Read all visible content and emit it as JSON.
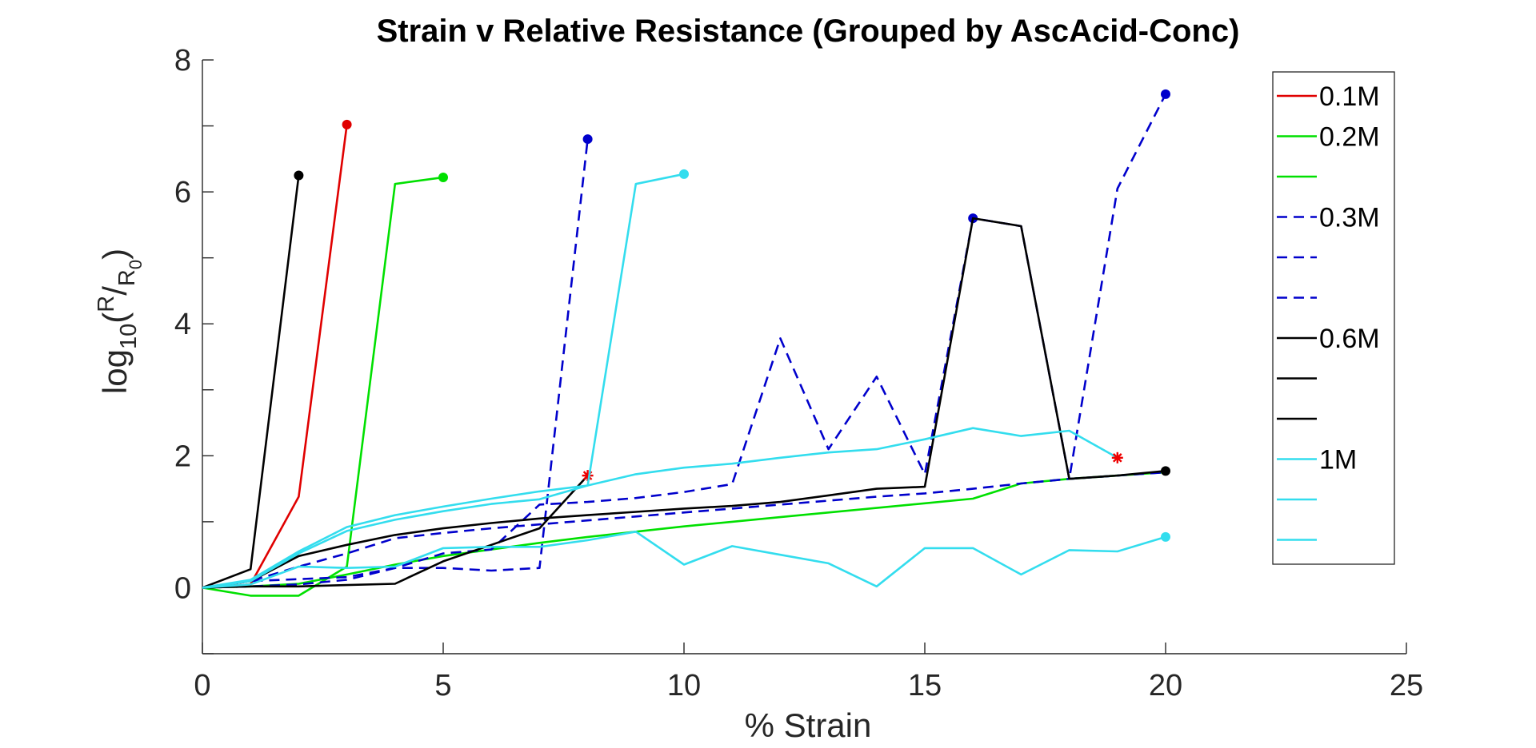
{
  "chart_data": {
    "type": "line",
    "title": "Strain v Relative Resistance (Grouped by AscAcid-Conc)",
    "xlabel": "% Strain",
    "ylabel": {
      "prefix": "log",
      "sub": "10",
      "open": "(",
      "num": "R",
      "slash": "/",
      "den": "R",
      "den_sub": "0",
      "close": ")"
    },
    "xlim": [
      0,
      25
    ],
    "ylim": [
      -1,
      8
    ],
    "xticks": [
      0,
      5,
      10,
      15,
      20,
      25
    ],
    "yticks": [
      0,
      2,
      4,
      6,
      8
    ],
    "grid": false,
    "legend_position": "top-right",
    "legend_entries": [
      "0.1M",
      "0.2M",
      "",
      "0.3M",
      "",
      "",
      "0.6M",
      "",
      "",
      "1M",
      "",
      ""
    ],
    "series": [
      {
        "group": "0.1M",
        "color": "#e00000",
        "dash": "solid",
        "x": [
          0,
          1,
          2,
          3
        ],
        "y": [
          0,
          0.05,
          1.38,
          7.02
        ],
        "end_marker": "dot"
      },
      {
        "group": "0.2M",
        "color": "#00e000",
        "dash": "solid",
        "x": [
          0,
          1,
          2,
          3,
          4,
          5
        ],
        "y": [
          0,
          -0.12,
          -0.12,
          0.32,
          6.12,
          6.22
        ],
        "end_marker": "dot"
      },
      {
        "group": "0.2M",
        "color": "#00e000",
        "dash": "solid",
        "x": [
          0,
          1,
          2,
          3,
          4,
          5,
          6,
          7,
          8,
          9,
          10,
          11,
          12,
          13,
          14,
          15,
          16,
          17,
          18,
          19,
          20
        ],
        "y": [
          0,
          0.02,
          0.06,
          0.2,
          0.35,
          0.48,
          0.58,
          0.68,
          0.77,
          0.85,
          0.93,
          1.0,
          1.07,
          1.14,
          1.21,
          1.28,
          1.35,
          1.58,
          1.65,
          1.7,
          1.75
        ],
        "end_marker": "none"
      },
      {
        "group": "0.3M",
        "color": "#0000cc",
        "dash": "dashed",
        "x": [
          0,
          1,
          2,
          3,
          4,
          5,
          6,
          7,
          8
        ],
        "y": [
          0,
          0.02,
          0.05,
          0.12,
          0.3,
          0.3,
          0.26,
          0.3,
          6.8
        ],
        "end_marker": "dot"
      },
      {
        "group": "0.3M",
        "color": "#0000cc",
        "dash": "dashed",
        "x": [
          0,
          1,
          2,
          3,
          4,
          5,
          6,
          7,
          8,
          9,
          10,
          11,
          12,
          13,
          14,
          15,
          16,
          17,
          18,
          19,
          20
        ],
        "y": [
          0,
          0.1,
          0.13,
          0.16,
          0.3,
          0.52,
          0.58,
          1.26,
          1.3,
          1.36,
          1.45,
          1.57,
          3.78,
          2.1,
          3.2,
          1.72,
          5.6,
          5.48,
          1.65,
          6.05,
          7.48
        ],
        "end_marker": "dot",
        "marker_points": [
          [
            16,
            5.6
          ]
        ]
      },
      {
        "group": "0.3M",
        "color": "#0000cc",
        "dash": "dashed",
        "x": [
          0,
          1,
          2,
          3,
          4,
          5,
          6,
          7,
          8,
          9,
          10,
          11,
          12,
          13,
          14,
          15,
          16,
          17,
          18,
          19,
          20
        ],
        "y": [
          0,
          0.1,
          0.32,
          0.52,
          0.75,
          0.83,
          0.9,
          0.96,
          1.02,
          1.08,
          1.14,
          1.2,
          1.26,
          1.32,
          1.38,
          1.43,
          1.5,
          1.58,
          1.65,
          1.7,
          1.75
        ],
        "end_marker": "none"
      },
      {
        "group": "0.6M",
        "color": "#000000",
        "dash": "solid",
        "x": [
          0,
          1,
          2
        ],
        "y": [
          0,
          0.28,
          6.25
        ],
        "end_marker": "dot"
      },
      {
        "group": "0.6M",
        "color": "#000000",
        "dash": "solid",
        "x": [
          0,
          1,
          2,
          3,
          4,
          5,
          6,
          7,
          8
        ],
        "y": [
          0,
          0.02,
          0.02,
          0.04,
          0.06,
          0.4,
          0.65,
          0.9,
          1.7
        ],
        "end_marker": "star"
      },
      {
        "group": "0.6M",
        "color": "#000000",
        "dash": "solid",
        "x": [
          0,
          1,
          2,
          3,
          4,
          5,
          6,
          7,
          8,
          9,
          10,
          11,
          12,
          13,
          14,
          15,
          16,
          17,
          18,
          19,
          20
        ],
        "y": [
          0,
          0.1,
          0.48,
          0.65,
          0.8,
          0.9,
          0.98,
          1.05,
          1.1,
          1.15,
          1.2,
          1.24,
          1.3,
          1.4,
          1.5,
          1.53,
          5.6,
          5.48,
          1.65,
          1.7,
          1.77
        ],
        "end_marker": "dot"
      },
      {
        "group": "1M",
        "color": "#33ddee",
        "dash": "solid",
        "x": [
          0,
          1,
          2,
          3,
          4,
          5,
          6,
          7,
          8,
          9,
          10
        ],
        "y": [
          0,
          0.1,
          0.52,
          0.86,
          1.03,
          1.16,
          1.27,
          1.34,
          1.55,
          6.12,
          6.27
        ],
        "end_marker": "dot"
      },
      {
        "group": "1M",
        "color": "#33ddee",
        "dash": "solid",
        "x": [
          0,
          1,
          2,
          3,
          4,
          5,
          6,
          7,
          8,
          9,
          10,
          11,
          12,
          13,
          14,
          15,
          16,
          17,
          18,
          19
        ],
        "y": [
          0,
          0.12,
          0.55,
          0.92,
          1.1,
          1.23,
          1.35,
          1.46,
          1.55,
          1.72,
          1.82,
          1.88,
          1.97,
          2.05,
          2.1,
          2.25,
          2.42,
          2.3,
          2.38,
          1.97
        ],
        "end_marker": "star"
      },
      {
        "group": "1M",
        "color": "#33ddee",
        "dash": "solid",
        "x": [
          0,
          1,
          2,
          3,
          4,
          5,
          6,
          7,
          8,
          9,
          10,
          11,
          12,
          13,
          14,
          15,
          16,
          17,
          18,
          19,
          20
        ],
        "y": [
          0,
          0.05,
          0.32,
          0.3,
          0.32,
          0.6,
          0.62,
          0.62,
          0.72,
          0.85,
          0.35,
          0.63,
          0.5,
          0.37,
          0.02,
          0.6,
          0.6,
          0.2,
          0.57,
          0.55,
          0.77
        ],
        "end_marker": "dot"
      }
    ]
  }
}
